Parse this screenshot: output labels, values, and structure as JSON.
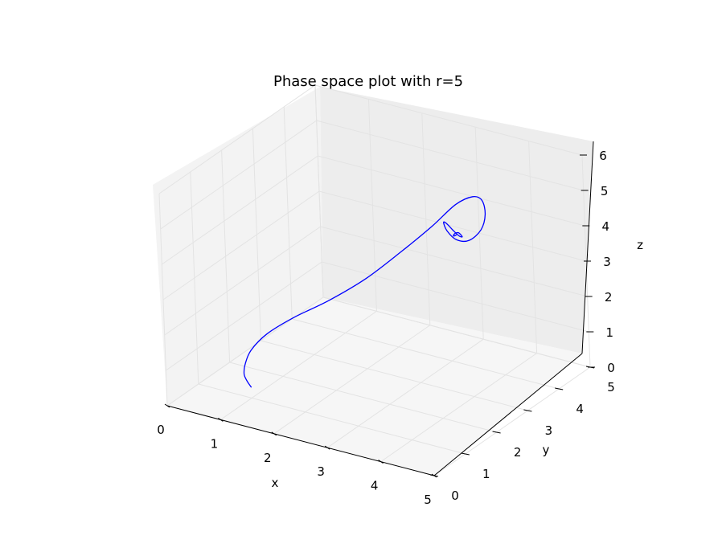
{
  "chart_data": {
    "type": "line3d",
    "title": "Phase space plot with r=5",
    "xlabel": "x",
    "ylabel": "y",
    "zlabel": "z",
    "xlim": [
      0,
      5
    ],
    "ylim": [
      0,
      5
    ],
    "zlim": [
      0,
      6
    ],
    "xticks": [
      "0",
      "1",
      "2",
      "3",
      "4",
      "5"
    ],
    "yticks": [
      "0",
      "1",
      "2",
      "3",
      "4",
      "5"
    ],
    "zticks": [
      "0",
      "1",
      "2",
      "3",
      "4",
      "5",
      "6"
    ],
    "grid": true,
    "series": [
      {
        "color": "#0000ff",
        "x": [
          1.0,
          0.95,
          0.92,
          0.95,
          1.05,
          1.3,
          1.7,
          2.2,
          2.7,
          3.15,
          3.5,
          3.75,
          3.9,
          3.92,
          3.85,
          3.7,
          3.5,
          3.35,
          3.3,
          3.3,
          3.35,
          3.45,
          3.52,
          3.55,
          3.53,
          3.5,
          3.47,
          3.45,
          3.45,
          3.46,
          3.48,
          3.48,
          3.47,
          3.46
        ],
        "y": [
          1.0,
          0.95,
          0.92,
          0.92,
          0.95,
          1.05,
          1.25,
          1.55,
          1.9,
          2.3,
          2.7,
          3.05,
          3.35,
          3.6,
          3.8,
          3.9,
          3.85,
          3.7,
          3.5,
          3.4,
          3.4,
          3.45,
          3.5,
          3.55,
          3.55,
          3.52,
          3.48,
          3.45,
          3.45,
          3.46,
          3.48,
          3.48,
          3.47,
          3.46
        ],
        "z": [
          0.3,
          0.5,
          0.7,
          1.0,
          1.4,
          1.9,
          2.4,
          2.9,
          3.5,
          4.2,
          4.8,
          5.3,
          5.4,
          5.15,
          4.6,
          4.05,
          3.7,
          3.75,
          4.1,
          4.4,
          4.4,
          4.2,
          4.05,
          4.0,
          4.05,
          4.12,
          4.12,
          4.08,
          4.05,
          4.05,
          4.07,
          4.07,
          4.06,
          4.06
        ]
      }
    ]
  }
}
